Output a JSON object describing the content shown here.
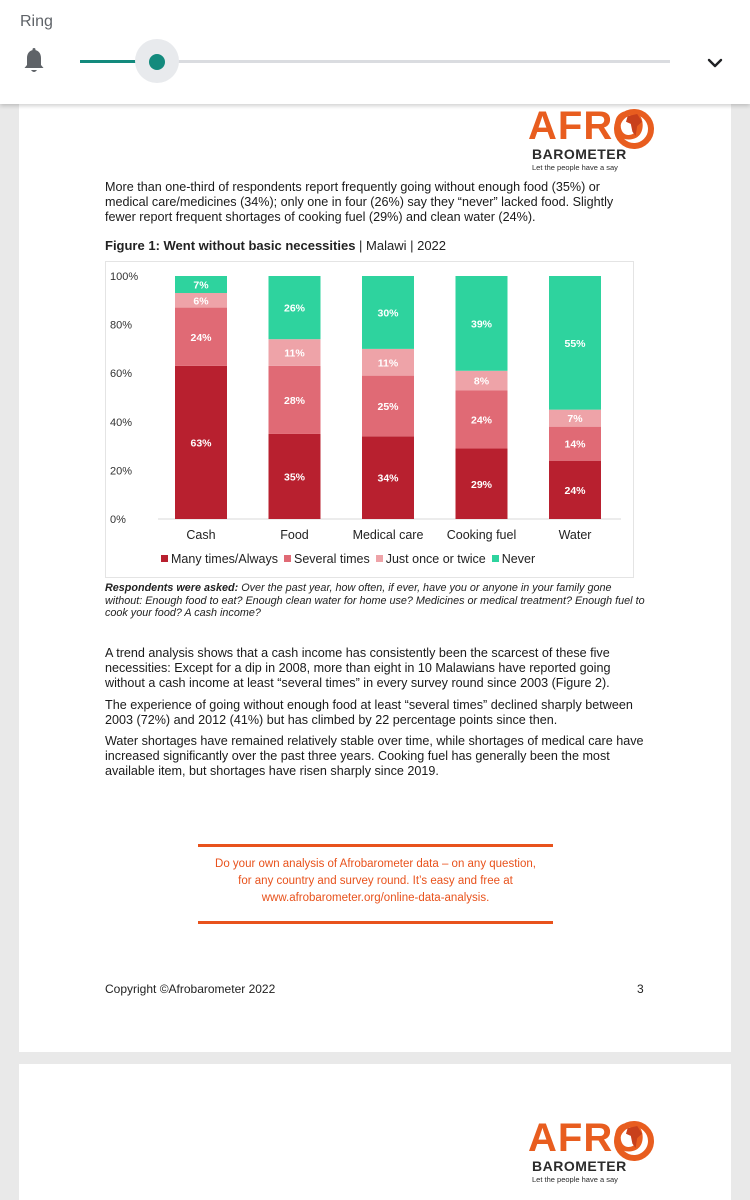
{
  "ring_panel": {
    "title": "Ring",
    "slider_level": 0.13,
    "colors": {
      "accent": "#138a7d"
    },
    "icons": [
      "bell-icon",
      "chevron-down-icon"
    ]
  },
  "page1": {
    "logo": {
      "name": "AFRO",
      "sub": "BAROMETER",
      "tagline": "Let the people have a say"
    },
    "intro": "More than one-third of respondents report frequently going without enough food (35%) or medical care/medicines (34%); only one in four (26%) say they “never” lacked food. Slightly fewer report frequent shortages of cooking fuel (29%) and clean water (24%).",
    "figure_title_bold": "Figure 1: Went without basic necessities",
    "figure_title_rest": " | Malawi | 2022",
    "asked_label": "Respondents were asked:",
    "asked_text": " Over the past year, how often, if ever, have you or anyone in your family gone without: Enough food to eat? Enough clean water for home use? Medicines or medical treatment? Enough fuel to cook your food? A cash income?",
    "para1": "A trend analysis shows that a cash income has consistently been the scarcest of these five necessities: Except for a dip in 2008, more than eight in 10 Malawians have reported going without a cash income at least “several times” in every survey round since 2003 (Figure 2).",
    "para2": "The experience of going without enough food at least “several times” declined sharply between 2003 (72%) and 2012 (41%) but has climbed by 22 percentage points since then.",
    "para3": "Water shortages have remained relatively stable over time, while shortages of medical care have increased significantly over the past three years. Cooking fuel has generally been the most available item, but shortages have risen sharply since 2019.",
    "promo_line1": "Do your own analysis of Afrobarometer data – on any question,",
    "promo_line2": "for any country and survey round. It’s easy and free at",
    "promo_line3": "www.afrobarometer.org/online-data-analysis.",
    "copyright": "Copyright ©Afrobarometer 2022",
    "page_number": "3"
  },
  "page2": {
    "logo": {
      "name": "AFRO",
      "sub": "BAROMETER",
      "tagline": "Let the people have a say"
    }
  },
  "chart_data": {
    "type": "bar",
    "stacked": true,
    "categories": [
      "Cash",
      "Food",
      "Medical care",
      "Cooking fuel",
      "Water"
    ],
    "series": [
      {
        "name": "Many times/Always",
        "color": "#b8202f",
        "values": [
          63,
          35,
          34,
          29,
          24
        ]
      },
      {
        "name": "Several times",
        "color": "#e06a75",
        "values": [
          24,
          28,
          25,
          24,
          14
        ]
      },
      {
        "name": "Just once or twice",
        "color": "#eea3a8",
        "values": [
          6,
          11,
          11,
          8,
          7
        ]
      },
      {
        "name": "Never",
        "color": "#2ed39e",
        "values": [
          7,
          26,
          30,
          39,
          55
        ]
      }
    ],
    "y_ticks": [
      "0%",
      "20%",
      "40%",
      "60%",
      "80%",
      "100%"
    ],
    "ylim": [
      0,
      100
    ],
    "legend_position": "bottom",
    "grid": false
  }
}
